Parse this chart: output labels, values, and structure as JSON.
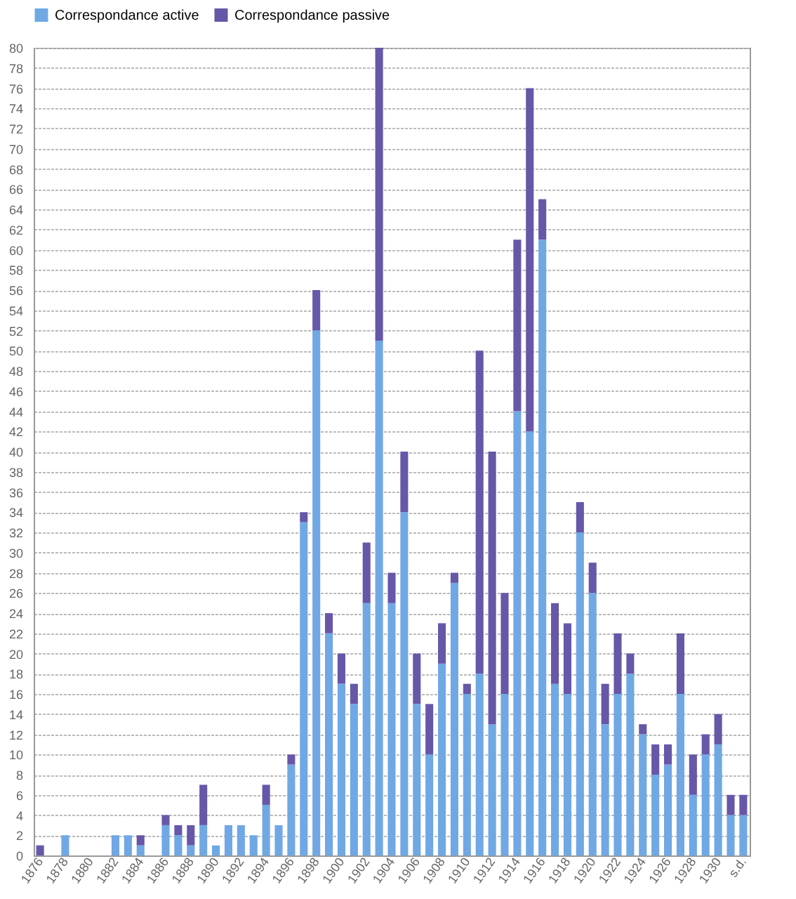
{
  "chart_data": {
    "type": "bar",
    "stacked": true,
    "legend": "top",
    "grid": "y",
    "categories": [
      "1876",
      null,
      "1878",
      null,
      "1880",
      null,
      "1882",
      null,
      "1884",
      null,
      "1886",
      null,
      "1888",
      null,
      "1890",
      null,
      "1892",
      null,
      "1894",
      null,
      "1896",
      null,
      "1898",
      null,
      "1900",
      null,
      "1902",
      null,
      "1904",
      null,
      "1906",
      null,
      "1908",
      null,
      "1910",
      null,
      "1912",
      null,
      "1914",
      null,
      "1916",
      null,
      "1918",
      null,
      "1920",
      null,
      "1922",
      null,
      "1924",
      null,
      "1926",
      null,
      "1928",
      null,
      "1930",
      null,
      "s.d."
    ],
    "ylim": [
      0,
      80
    ],
    "yticks": [
      0,
      2,
      4,
      6,
      8,
      10,
      12,
      14,
      16,
      18,
      20,
      22,
      24,
      26,
      28,
      30,
      32,
      34,
      36,
      38,
      40,
      42,
      44,
      46,
      48,
      50,
      52,
      54,
      56,
      58,
      60,
      62,
      64,
      66,
      68,
      70,
      72,
      74,
      76,
      78,
      80
    ],
    "series": [
      {
        "name": "Correspondance active",
        "color": "#6fa8e4",
        "values": [
          0,
          0,
          2,
          0,
          0,
          0,
          2,
          2,
          1,
          0,
          3,
          2,
          1,
          3,
          1,
          3,
          3,
          2,
          5,
          3,
          9,
          33,
          52,
          22,
          17,
          15,
          25,
          51,
          25,
          34,
          15,
          10,
          19,
          27,
          16,
          18,
          13,
          16,
          44,
          42,
          61,
          17,
          16,
          32,
          26,
          13,
          16,
          18,
          12,
          8,
          9,
          16,
          6,
          10,
          11,
          4,
          4
        ]
      },
      {
        "name": "Correspondance passive",
        "color": "#6757a8",
        "values": [
          1,
          0,
          0,
          0,
          0,
          0,
          0,
          0,
          1,
          0,
          1,
          1,
          2,
          4,
          0,
          0,
          0,
          0,
          2,
          0,
          1,
          1,
          4,
          2,
          3,
          2,
          6,
          29,
          3,
          6,
          5,
          5,
          4,
          1,
          1,
          32,
          27,
          10,
          17,
          34,
          4,
          8,
          7,
          3,
          3,
          4,
          6,
          2,
          1,
          3,
          2,
          6,
          4,
          2,
          3,
          2,
          2
        ]
      }
    ]
  }
}
